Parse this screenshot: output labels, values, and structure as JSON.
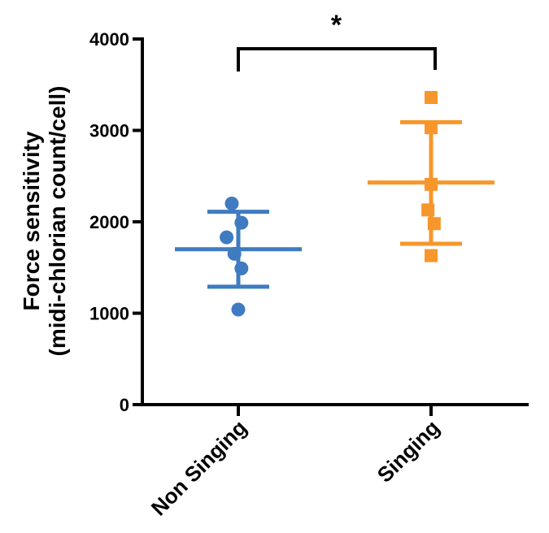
{
  "chart_data": {
    "type": "scatter",
    "ylabel_line1": "Force sensitivity",
    "ylabel_line2": "(midi-chlorian count/cell)",
    "ylim": [
      0,
      4000
    ],
    "yticks": [
      0,
      1000,
      2000,
      3000,
      4000
    ],
    "categories": [
      "Non Singing",
      "Singing"
    ],
    "series": [
      {
        "category": "Non Singing",
        "color": "#3F7BC0",
        "marker": "circle",
        "points": [
          {
            "dx": -0.25,
            "y": 2200
          },
          {
            "dx": 0.12,
            "y": 1990
          },
          {
            "dx": -0.45,
            "y": 1830
          },
          {
            "dx": -0.15,
            "y": 1650
          },
          {
            "dx": 0.12,
            "y": 1490
          },
          {
            "dx": 0.0,
            "y": 1040
          }
        ],
        "mean": 1700,
        "sd_upper": 2110,
        "sd_lower": 1290
      },
      {
        "category": "Singing",
        "color": "#F7962A",
        "marker": "square",
        "points": [
          {
            "dx": 0.0,
            "y": 3360
          },
          {
            "dx": 0.0,
            "y": 3030
          },
          {
            "dx": 0.0,
            "y": 2410
          },
          {
            "dx": -0.12,
            "y": 2130
          },
          {
            "dx": 0.12,
            "y": 1980
          },
          {
            "dx": 0.0,
            "y": 1630
          }
        ],
        "mean": 2430,
        "sd_upper": 3090,
        "sd_lower": 1760
      }
    ],
    "significance": {
      "label": "*",
      "between": [
        "Non Singing",
        "Singing"
      ]
    }
  }
}
